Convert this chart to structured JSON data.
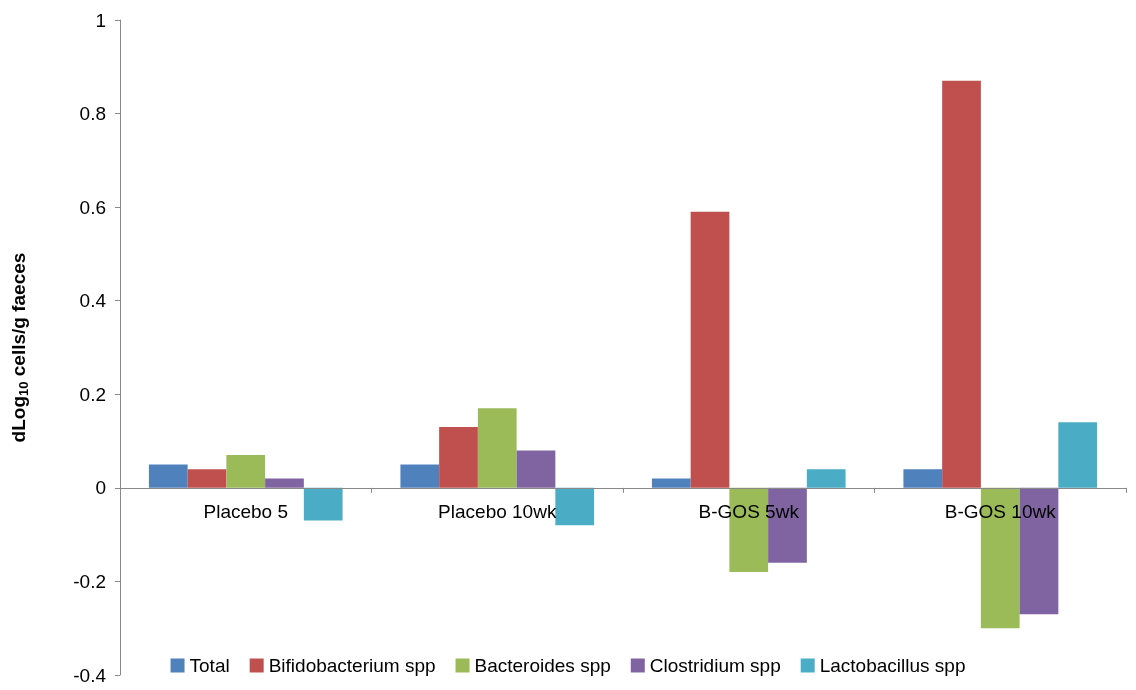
{
  "chart_data": {
    "type": "bar",
    "ylabel": "dLog$_{10}$ cells/g faeces",
    "categories": [
      "Placebo 5",
      "Placebo 10wk",
      "B-GOS 5wk",
      "B-GOS 10wk"
    ],
    "series": [
      {
        "name": "Total",
        "color": "#4f81bd",
        "values": [
          0.05,
          0.05,
          0.02,
          0.04
        ]
      },
      {
        "name": "Bifidobacterium spp",
        "color": "#c0504d",
        "values": [
          0.04,
          0.13,
          0.59,
          0.87
        ]
      },
      {
        "name": "Bacteroides spp",
        "color": "#9bbb59",
        "values": [
          0.07,
          0.17,
          -0.18,
          -0.3
        ]
      },
      {
        "name": "Clostridium spp",
        "color": "#8064a2",
        "values": [
          0.02,
          0.08,
          -0.16,
          -0.27
        ]
      },
      {
        "name": "Lactobacillus spp",
        "color": "#4bacc6",
        "values": [
          -0.07,
          -0.08,
          0.04,
          0.14
        ]
      }
    ],
    "ylim": [
      -0.4,
      1
    ],
    "yticks": [
      -0.4,
      -0.2,
      0,
      0.2,
      0.4,
      0.6,
      0.8,
      1
    ],
    "grid": false,
    "legend": "bottom"
  }
}
